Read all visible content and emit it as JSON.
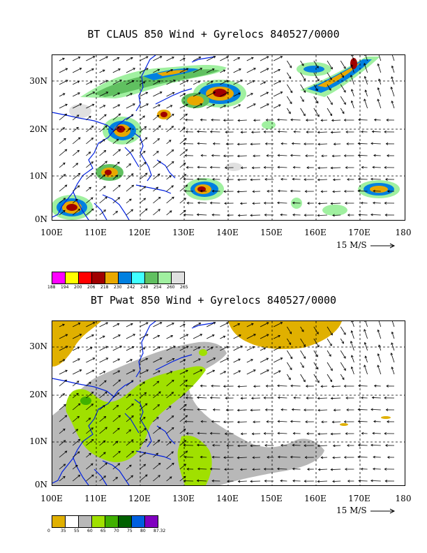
{
  "top_panel": {
    "title": "BT CLAUS 850 Wind + Gyrelocs 840527/0000",
    "x_ticks": [
      "100E",
      "110E",
      "120E",
      "130E",
      "140E",
      "150E",
      "160E",
      "170E",
      "180"
    ],
    "y_ticks": [
      "30N",
      "20N",
      "10N",
      "0N"
    ],
    "reference_vector": "15 M/S",
    "colorbar": {
      "colors": [
        "#ff00ff",
        "#ffff00",
        "#ff0000",
        "#a00000",
        "#e8a800",
        "#0080e0",
        "#40ffff",
        "#60c060",
        "#a0f0a0",
        "#e0e0e0"
      ],
      "labels": [
        "188",
        "194",
        "200",
        "206",
        "218",
        "230",
        "242",
        "248",
        "254",
        "260",
        "265"
      ]
    }
  },
  "bottom_panel": {
    "title": "BT Pwat 850 Wind + Gyrelocs 840527/0000",
    "x_ticks": [
      "100E",
      "110E",
      "120E",
      "130E",
      "140E",
      "150E",
      "160E",
      "170E",
      "180"
    ],
    "y_ticks": [
      "30N",
      "20N",
      "10N",
      "0N"
    ],
    "reference_vector": "15 M/S",
    "colorbar": {
      "colors": [
        "#e0b000",
        "#ffffff",
        "#b8b8b8",
        "#a0e000",
        "#40b000",
        "#006000",
        "#0060e0",
        "#8000c0"
      ],
      "labels": [
        "0",
        "35",
        "55",
        "60",
        "65",
        "70",
        "75",
        "80",
        "87.32"
      ]
    }
  }
}
